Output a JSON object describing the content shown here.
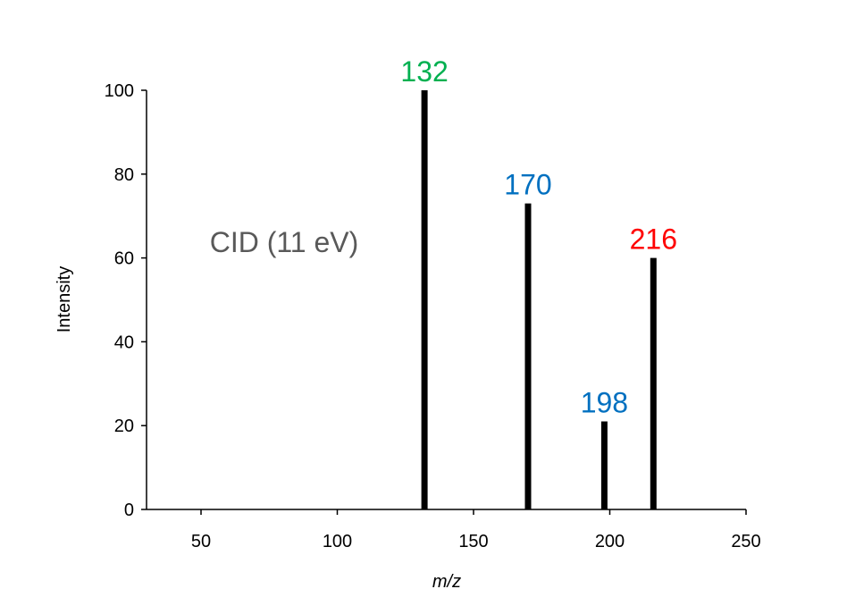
{
  "chart_data": {
    "type": "bar",
    "title": "",
    "xlabel": "m/z",
    "ylabel": "Intensity",
    "xlim": [
      30,
      250
    ],
    "ylim": [
      0,
      100
    ],
    "xticks": [
      50,
      100,
      150,
      200,
      250
    ],
    "yticks": [
      0,
      20,
      40,
      60,
      80,
      100
    ],
    "grid": false,
    "annotation": "CID (11 eV)",
    "peaks": [
      {
        "mz": 132,
        "intensity": 100,
        "label": "132",
        "label_color": "#00B050"
      },
      {
        "mz": 170,
        "intensity": 73,
        "label": "170",
        "label_color": "#0070C0"
      },
      {
        "mz": 198,
        "intensity": 21,
        "label": "198",
        "label_color": "#0070C0"
      },
      {
        "mz": 216,
        "intensity": 60,
        "label": "216",
        "label_color": "#FF0000"
      }
    ],
    "bar_color": "#000000"
  }
}
